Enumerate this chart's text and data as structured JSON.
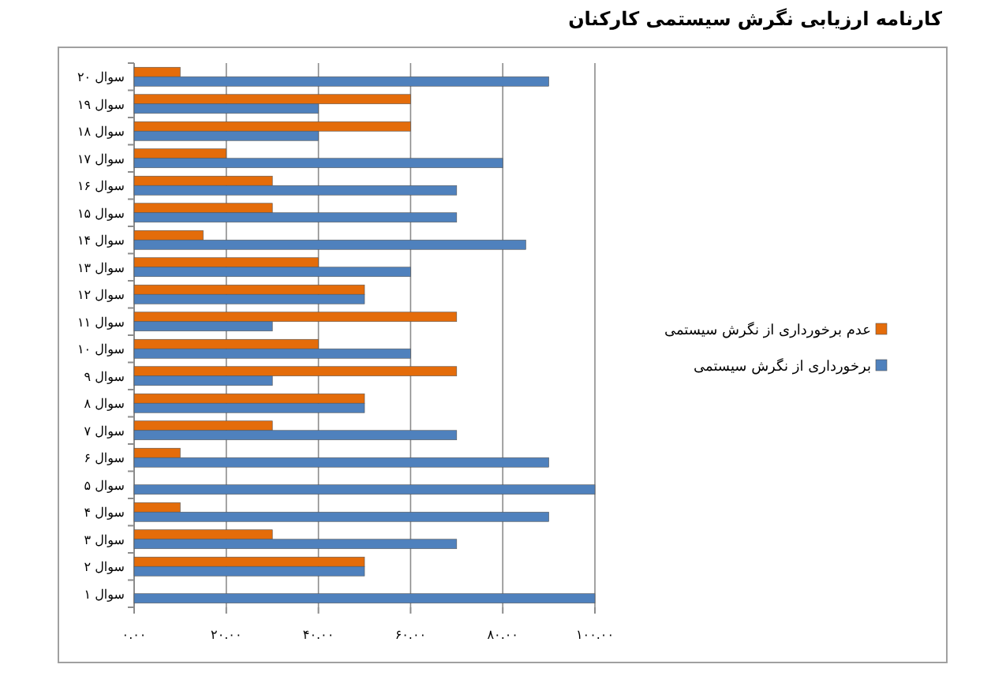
{
  "chart_data": {
    "type": "bar",
    "orientation": "horizontal",
    "title": "کارنامه ارزیابی نگرش سیستمی کارکنان",
    "categories": [
      "سوال ۲۰",
      "سوال ۱۹",
      "سوال ۱۸",
      "سوال ۱۷",
      "سوال ۱۶",
      "سوال ۱۵",
      "سوال ۱۴",
      "سوال ۱۳",
      "سوال ۱۲",
      "سوال ۱۱",
      "سوال ۱۰",
      "سوال ۹",
      "سوال ۸",
      "سوال ۷",
      "سوال ۶",
      "سوال ۵",
      "سوال ۴",
      "سوال ۳",
      "سوال ۲",
      "سوال ۱"
    ],
    "series": [
      {
        "name": "عدم برخورداری از نگرش سیستمی",
        "color": "#e46c0a",
        "values": [
          10,
          60,
          60,
          20,
          30,
          30,
          15,
          40,
          50,
          70,
          40,
          70,
          50,
          30,
          10,
          0,
          10,
          30,
          50,
          0
        ]
      },
      {
        "name": "برخورداری از نگرش سیستمی",
        "color": "#4f81bd",
        "values": [
          90,
          40,
          40,
          80,
          70,
          70,
          85,
          60,
          50,
          30,
          60,
          30,
          50,
          70,
          90,
          100,
          90,
          70,
          50,
          100
        ]
      }
    ],
    "xlim": [
      0,
      100
    ],
    "xticks": [
      {
        "value": 0,
        "label": "۰.۰۰"
      },
      {
        "value": 20,
        "label": "۲۰.۰۰"
      },
      {
        "value": 40,
        "label": "۴۰.۰۰"
      },
      {
        "value": 60,
        "label": "۶۰.۰۰"
      },
      {
        "value": 80,
        "label": "۸۰.۰۰"
      },
      {
        "value": 100,
        "label": "۱۰۰.۰۰"
      }
    ],
    "grid": "x",
    "legend": "right"
  }
}
